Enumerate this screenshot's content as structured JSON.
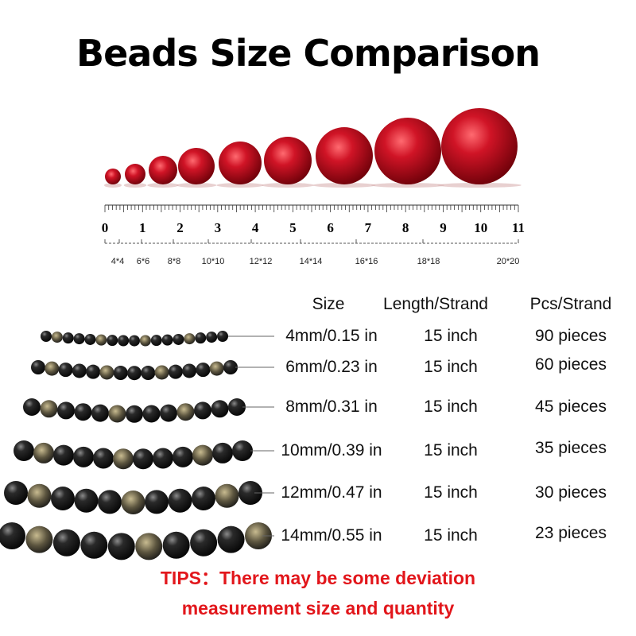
{
  "title": "Beads Size Comparison",
  "ruler": {
    "inch_ticks": [
      "0",
      "1",
      "2",
      "3",
      "4",
      "5",
      "6",
      "7",
      "8",
      "9",
      "10",
      "11"
    ],
    "size_labels": [
      "4*4",
      "6*6",
      "8*8",
      "10*10",
      "12*12",
      "14*14",
      "16*16",
      "18*18",
      "20*20"
    ]
  },
  "bead_color": "#c0101e",
  "table": {
    "headers": [
      "Size",
      "Length/Strand",
      "Pcs/Strand"
    ],
    "rows": [
      {
        "size": "4mm/0.15 in",
        "length": "15 inch",
        "pcs": "90 pieces"
      },
      {
        "size": "6mm/0.23 in",
        "length": "15 inch",
        "pcs": "60 pieces"
      },
      {
        "size": "8mm/0.31 in",
        "length": "15 inch",
        "pcs": "45 pieces"
      },
      {
        "size": "10mm/0.39 in",
        "length": "15 inch",
        "pcs": "35 pieces"
      },
      {
        "size": "12mm/0.47 in",
        "length": "15 inch",
        "pcs": "30 pieces"
      },
      {
        "size": "14mm/0.55 in",
        "length": "15 inch",
        "pcs": "23 pieces"
      }
    ]
  },
  "tips": {
    "line1": "TIPS：There may be some deviation",
    "line2": "measurement size and quantity",
    "color": "#e2161b"
  }
}
